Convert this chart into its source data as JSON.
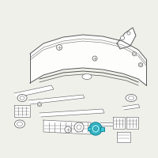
{
  "background_color": "#f0f0ea",
  "figsize": [
    2.0,
    2.0
  ],
  "dpi": 100,
  "highlight_color": "#3ec8d8",
  "line_color": "#707070",
  "dark_line": "#555555",
  "fill_white": "#ffffff"
}
